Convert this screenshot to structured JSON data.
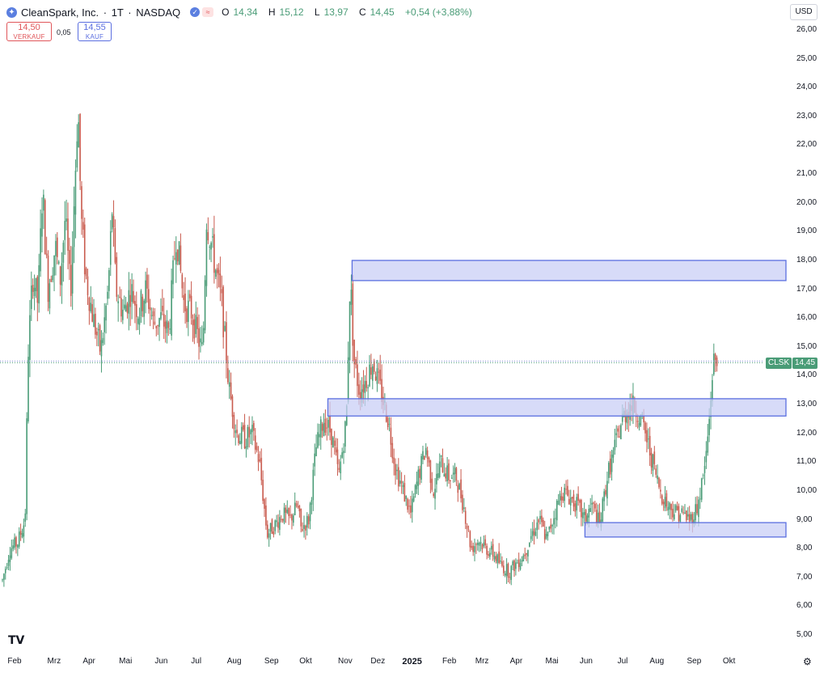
{
  "header": {
    "symbol": "CleanSpark, Inc.",
    "sep1": "·",
    "interval": "1T",
    "sep2": "·",
    "exchange": "NASDAQ",
    "ohlc": {
      "o_key": "O",
      "o_val": "14,34",
      "h_key": "H",
      "h_val": "15,12",
      "l_key": "L",
      "l_val": "13,97",
      "c_key": "C",
      "c_val": "14,45",
      "change": "+0,54 (+3,88%)"
    }
  },
  "trade": {
    "sell_price": "14,50",
    "sell_label": "VERKAUF",
    "spread": "0,05",
    "buy_price": "14,55",
    "buy_label": "KAUF"
  },
  "currency": "USD",
  "price_tag": {
    "ticker": "CLSK",
    "price": "14,45"
  },
  "colors": {
    "up": "#4a9c77",
    "down": "#c95b4e",
    "zone_fill": "#c9cff5",
    "zone_border": "#5b6fe0",
    "tag": "#4a9c77"
  },
  "icons": {
    "logo": "tradingview-logo",
    "settings": "gear-icon"
  },
  "chart_data": {
    "type": "candlestick",
    "title": "CleanSpark, Inc. · 1T · NASDAQ",
    "ylim": [
      4.5,
      26.5
    ],
    "y_ticks": [
      "5,00",
      "6,00",
      "7,00",
      "8,00",
      "9,00",
      "10,00",
      "11,00",
      "12,00",
      "13,00",
      "14,00",
      "15,00",
      "16,00",
      "17,00",
      "18,00",
      "19,00",
      "20,00",
      "21,00",
      "22,00",
      "23,00",
      "24,00",
      "25,00",
      "26,00"
    ],
    "x_ticks": [
      {
        "label": "Feb",
        "pos": 0.0
      },
      {
        "label": "Mrz",
        "pos": 0.052
      },
      {
        "label": "Apr",
        "pos": 0.098
      },
      {
        "label": "Mai",
        "pos": 0.146
      },
      {
        "label": "Jun",
        "pos": 0.193
      },
      {
        "label": "Jul",
        "pos": 0.239
      },
      {
        "label": "Aug",
        "pos": 0.289
      },
      {
        "label": "Sep",
        "pos": 0.338
      },
      {
        "label": "Okt",
        "pos": 0.383
      },
      {
        "label": "Nov",
        "pos": 0.435
      },
      {
        "label": "Dez",
        "pos": 0.478
      },
      {
        "label": "2025",
        "pos": 0.523,
        "bold": true
      },
      {
        "label": "Feb",
        "pos": 0.572
      },
      {
        "label": "Mrz",
        "pos": 0.615
      },
      {
        "label": "Apr",
        "pos": 0.66
      },
      {
        "label": "Mai",
        "pos": 0.707
      },
      {
        "label": "Jun",
        "pos": 0.752
      },
      {
        "label": "Jul",
        "pos": 0.8
      },
      {
        "label": "Aug",
        "pos": 0.845
      },
      {
        "label": "Sep",
        "pos": 0.894
      },
      {
        "label": "Okt",
        "pos": 0.94
      }
    ],
    "price_path": [
      [
        0,
        6.9
      ],
      [
        0.01,
        8.0
      ],
      [
        0.02,
        8.2
      ],
      [
        0.03,
        9.0
      ],
      [
        0.034,
        14.8
      ],
      [
        0.04,
        17.5
      ],
      [
        0.047,
        16.5
      ],
      [
        0.053,
        20.5
      ],
      [
        0.06,
        17.0
      ],
      [
        0.07,
        18.5
      ],
      [
        0.076,
        17.2
      ],
      [
        0.083,
        19.5
      ],
      [
        0.09,
        16.8
      ],
      [
        0.1,
        23.5
      ],
      [
        0.104,
        19.5
      ],
      [
        0.11,
        17.5
      ],
      [
        0.12,
        16.0
      ],
      [
        0.13,
        14.8
      ],
      [
        0.14,
        17.0
      ],
      [
        0.145,
        19.8
      ],
      [
        0.15,
        17.0
      ],
      [
        0.16,
        16.2
      ],
      [
        0.17,
        17.0
      ],
      [
        0.18,
        16.2
      ],
      [
        0.19,
        17.0
      ],
      [
        0.2,
        15.8
      ],
      [
        0.21,
        16.0
      ],
      [
        0.22,
        15.5
      ],
      [
        0.23,
        19.0
      ],
      [
        0.24,
        16.5
      ],
      [
        0.25,
        16.2
      ],
      [
        0.26,
        15.2
      ],
      [
        0.265,
        14.8
      ],
      [
        0.27,
        19.5
      ],
      [
        0.28,
        18.0
      ],
      [
        0.29,
        16.5
      ],
      [
        0.3,
        13.5
      ],
      [
        0.31,
        12.0
      ],
      [
        0.32,
        11.8
      ],
      [
        0.33,
        12.0
      ],
      [
        0.34,
        11.0
      ],
      [
        0.35,
        8.5
      ],
      [
        0.36,
        8.8
      ],
      [
        0.37,
        9.2
      ],
      [
        0.38,
        9.0
      ],
      [
        0.39,
        9.5
      ],
      [
        0.395,
        8.7
      ],
      [
        0.405,
        9.0
      ],
      [
        0.415,
        11.5
      ],
      [
        0.425,
        12.5
      ],
      [
        0.435,
        12.0
      ],
      [
        0.445,
        10.5
      ],
      [
        0.455,
        12.5
      ],
      [
        0.46,
        17.5
      ],
      [
        0.465,
        14.5
      ],
      [
        0.472,
        13.5
      ],
      [
        0.48,
        13.8
      ],
      [
        0.49,
        14.5
      ],
      [
        0.5,
        13.5
      ],
      [
        0.51,
        12.5
      ],
      [
        0.52,
        10.8
      ],
      [
        0.53,
        10.0
      ],
      [
        0.54,
        9.2
      ],
      [
        0.55,
        10.5
      ],
      [
        0.56,
        11.5
      ],
      [
        0.57,
        10.0
      ],
      [
        0.58,
        11.0
      ],
      [
        0.59,
        10.5
      ],
      [
        0.6,
        10.5
      ],
      [
        0.61,
        9.5
      ],
      [
        0.62,
        8.0
      ],
      [
        0.63,
        8.3
      ],
      [
        0.64,
        8.0
      ],
      [
        0.65,
        7.8
      ],
      [
        0.66,
        7.4
      ],
      [
        0.67,
        7.2
      ],
      [
        0.68,
        7.5
      ],
      [
        0.69,
        7.8
      ],
      [
        0.7,
        8.5
      ],
      [
        0.71,
        9.0
      ],
      [
        0.72,
        8.3
      ],
      [
        0.73,
        9.2
      ],
      [
        0.74,
        10.0
      ],
      [
        0.75,
        9.8
      ],
      [
        0.76,
        9.5
      ],
      [
        0.77,
        9.0
      ],
      [
        0.78,
        9.5
      ],
      [
        0.79,
        8.8
      ],
      [
        0.8,
        10.5
      ],
      [
        0.81,
        11.5
      ],
      [
        0.82,
        12.5
      ],
      [
        0.83,
        13.0
      ],
      [
        0.84,
        12.8
      ],
      [
        0.85,
        12.0
      ],
      [
        0.86,
        11.0
      ],
      [
        0.87,
        10.0
      ],
      [
        0.88,
        9.5
      ],
      [
        0.89,
        9.3
      ],
      [
        0.9,
        9.2
      ],
      [
        0.91,
        9.0
      ],
      [
        0.92,
        9.5
      ],
      [
        0.93,
        11.0
      ],
      [
        0.935,
        12.5
      ],
      [
        0.94,
        14.5
      ],
      [
        0.945,
        14.45
      ]
    ],
    "zones": [
      {
        "x0": 0.455,
        "x1": 1.0,
        "y0": 17.3,
        "y1": 18.0
      },
      {
        "x0": 0.423,
        "x1": 1.0,
        "y0": 12.6,
        "y1": 13.2
      },
      {
        "x0": 0.763,
        "x1": 1.0,
        "y0": 8.4,
        "y1": 8.9
      }
    ],
    "last_price": 14.45
  }
}
